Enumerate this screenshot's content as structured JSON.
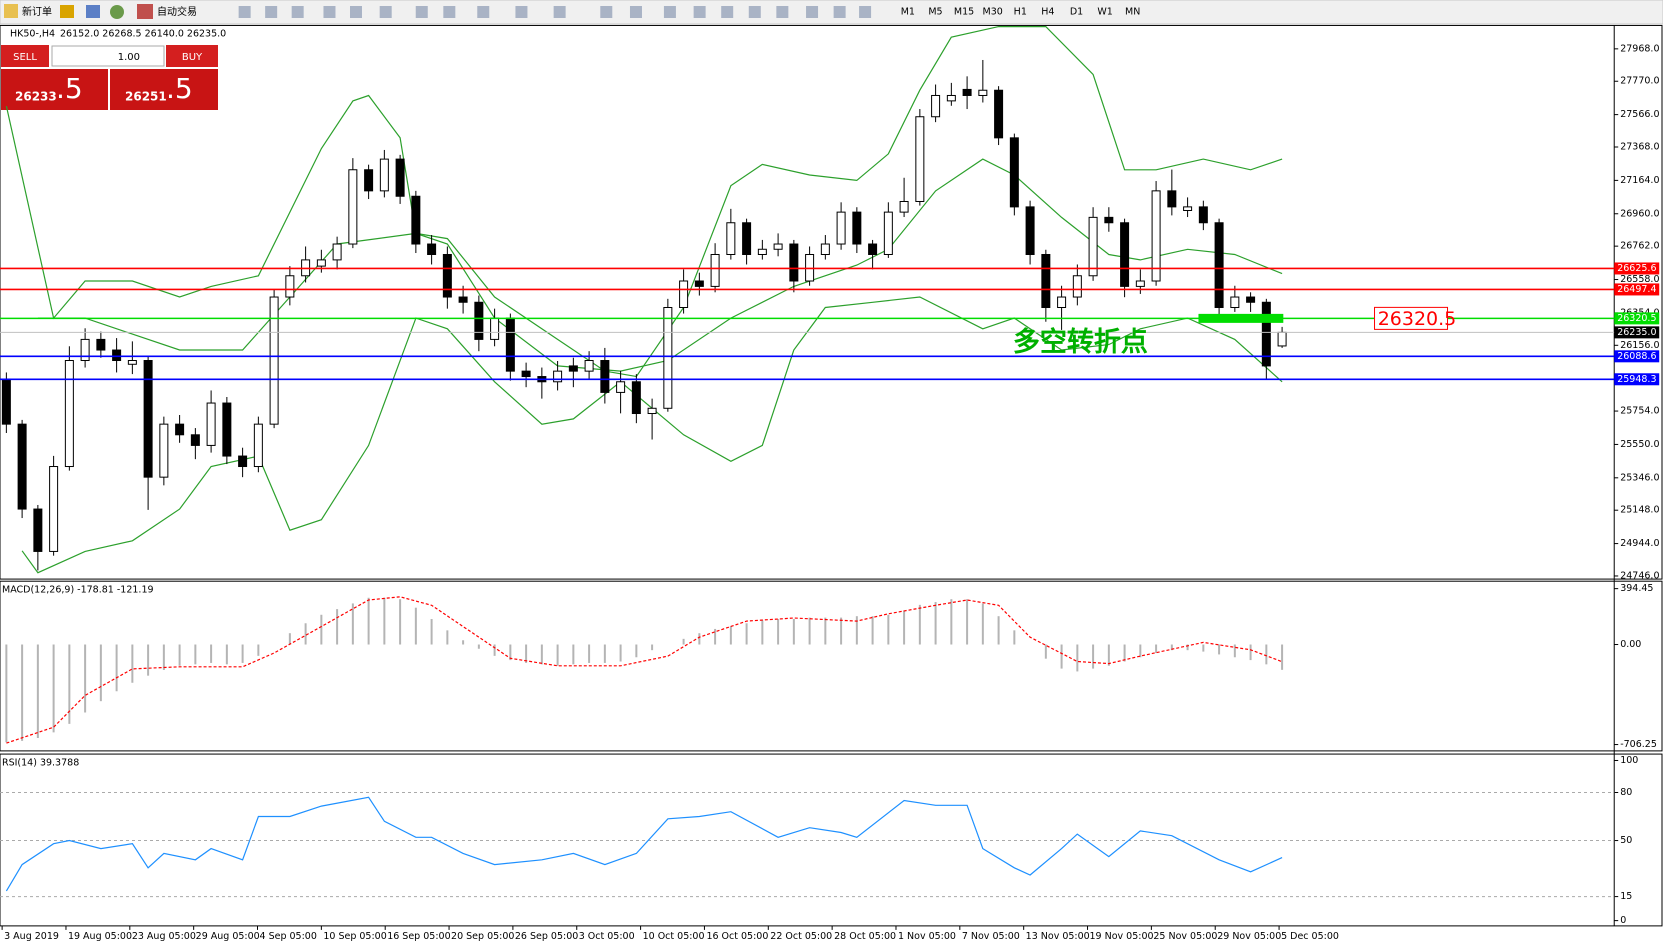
{
  "toolbar": {
    "new_order": "新订单",
    "auto_trading": "自动交易",
    "timeframes": [
      "M1",
      "M5",
      "M15",
      "M30",
      "H1",
      "H4",
      "D1",
      "W1",
      "MN"
    ]
  },
  "trade_panel": {
    "sell": "SELL",
    "lot": "1.00",
    "buy": "BUY",
    "sell_price": "26233",
    "sell_pips": ".5",
    "buy_price": "26251",
    "buy_pips": ".5"
  },
  "chart_data": [
    {
      "type": "candlestick",
      "info": "HK50-,H4",
      "ohlc_text": "26152.0 26268.5 26140.0 26235.0",
      "open": [
        25950,
        25674,
        25155,
        24896,
        25415,
        26063,
        26192,
        26127,
        26040,
        26063,
        25350,
        25674,
        25609,
        25544,
        25803,
        25479,
        25415,
        25674,
        26451,
        26581,
        26640,
        26678,
        26775,
        27229,
        27100,
        27294,
        27067,
        26775,
        26711,
        26451,
        26419,
        26192,
        26322,
        25998,
        25965,
        25933,
        26030,
        25998,
        26063,
        25868,
        25933,
        25739,
        25771,
        26387,
        26549,
        26516,
        26711,
        26905,
        26711,
        26743,
        26775,
        26549,
        26711,
        26775,
        26970,
        26775,
        26711,
        26970,
        27035,
        27553,
        27650,
        27720,
        27683,
        27715,
        27424,
        27002,
        26711,
        26387,
        26451,
        26581,
        26938,
        26905,
        26516,
        26549,
        27100,
        26980,
        27002,
        26905,
        26387,
        26451,
        26419,
        26152
      ],
      "high": [
        25990,
        25700,
        25180,
        25480,
        26150,
        26260,
        26240,
        26200,
        26180,
        26090,
        25720,
        25730,
        25650,
        25880,
        25840,
        25530,
        25720,
        26500,
        26640,
        26760,
        26740,
        26820,
        27300,
        27260,
        27350,
        27320,
        27100,
        26830,
        26760,
        26520,
        26460,
        26380,
        26350,
        26050,
        26020,
        26060,
        26080,
        26120,
        26140,
        26000,
        25980,
        25830,
        26440,
        26620,
        26600,
        26780,
        26990,
        26930,
        26800,
        26840,
        26800,
        26760,
        26830,
        27030,
        27000,
        26800,
        27030,
        27180,
        27600,
        27750,
        27760,
        27800,
        27900,
        27740,
        27450,
        27040,
        26740,
        26520,
        26650,
        27000,
        27000,
        26930,
        26620,
        27160,
        27230,
        27060,
        27040,
        26930,
        26520,
        26480,
        26440,
        26268.5
      ],
      "low": [
        25620,
        25100,
        24780,
        24870,
        25390,
        26020,
        26080,
        25990,
        25980,
        25150,
        25300,
        25560,
        25460,
        25500,
        25430,
        25350,
        25380,
        25650,
        26400,
        26540,
        26600,
        26620,
        26750,
        27050,
        27060,
        27020,
        26720,
        26650,
        26380,
        26350,
        26120,
        26150,
        25940,
        25900,
        25830,
        25880,
        25900,
        25950,
        25800,
        25740,
        25680,
        25580,
        25750,
        26350,
        26460,
        26480,
        26680,
        26650,
        26680,
        26700,
        26480,
        26520,
        26680,
        26740,
        26720,
        26620,
        26690,
        26940,
        27010,
        27520,
        27620,
        27600,
        27640,
        27380,
        26950,
        26650,
        26300,
        26250,
        26400,
        26550,
        26850,
        26450,
        26470,
        26520,
        26950,
        26940,
        26860,
        26330,
        26360,
        26360,
        25950,
        26140
      ],
      "close": [
        25674,
        25155,
        24896,
        25415,
        26063,
        26192,
        26127,
        26063,
        26063,
        25350,
        25674,
        25609,
        25544,
        25803,
        25479,
        25415,
        25674,
        26451,
        26581,
        26678,
        26678,
        26775,
        27229,
        27100,
        27294,
        27067,
        26775,
        26711,
        26451,
        26419,
        26192,
        26322,
        25998,
        25965,
        25933,
        25998,
        25998,
        26063,
        25868,
        25933,
        25739,
        25771,
        26387,
        26549,
        26516,
        26711,
        26905,
        26711,
        26743,
        26775,
        26549,
        26711,
        26775,
        26970,
        26775,
        26711,
        26970,
        27035,
        27553,
        27683,
        27683,
        27683,
        27715,
        27424,
        27002,
        26711,
        26387,
        26451,
        26581,
        26938,
        26905,
        26516,
        26549,
        27100,
        27002,
        27002,
        26905,
        26387,
        26451,
        26419,
        26030,
        26235
      ],
      "bands": {
        "color": "#2ca02c",
        "upper": {
          "x": [
            0,
            3,
            5,
            8,
            11,
            13,
            16,
            18,
            20,
            22,
            23,
            25,
            26,
            28,
            31,
            35,
            38,
            40,
            43,
            46,
            48,
            51,
            54,
            56,
            58,
            60,
            63,
            66,
            69,
            71,
            73,
            76,
            79,
            81
          ],
          "values": [
            27618,
            26322,
            26549,
            26549,
            26451,
            26516,
            26581,
            26970,
            27359,
            27650,
            27683,
            27424,
            26840,
            26808,
            26451,
            26192,
            25998,
            25965,
            26387,
            27132,
            27262,
            27197,
            27164,
            27326,
            27715,
            28039,
            28104,
            28104,
            27812,
            27229,
            27229,
            27294,
            27229,
            27294
          ]
        },
        "middle": {
          "x": [
            2,
            5,
            11,
            15,
            18,
            21,
            26,
            28,
            31,
            35,
            39,
            42,
            46,
            50,
            54,
            56,
            59,
            62,
            64,
            67,
            70,
            72,
            75,
            78,
            81
          ],
          "values": [
            26322,
            26322,
            26127,
            26127,
            26451,
            26775,
            26840,
            26775,
            26322,
            26030,
            25998,
            26063,
            26322,
            26516,
            26646,
            26743,
            27100,
            27294,
            27197,
            26938,
            26711,
            26678,
            26743,
            26711,
            26594
          ]
        },
        "lower": {
          "x": [
            1,
            2,
            5,
            8,
            11,
            13,
            16,
            18,
            20,
            23,
            26,
            28,
            31,
            34,
            36,
            39,
            43,
            46,
            48,
            50,
            52,
            55,
            58,
            62,
            64,
            67,
            70,
            72,
            75,
            78,
            81
          ],
          "values": [
            24900,
            24766,
            24896,
            24961,
            25155,
            25415,
            25479,
            25026,
            25090,
            25544,
            26322,
            26257,
            25933,
            25674,
            25706,
            25933,
            25609,
            25447,
            25544,
            26127,
            26387,
            26419,
            26451,
            26257,
            26322,
            26127,
            26160,
            26257,
            26322,
            26192,
            25933
          ]
        }
      },
      "hlines": [
        {
          "value": 26625.6,
          "color": "#ff0000"
        },
        {
          "value": 26497.4,
          "color": "#ff0000"
        },
        {
          "value": 26320.5,
          "color": "#00dd00"
        },
        {
          "value": 26088.6,
          "color": "#0000ff"
        },
        {
          "value": 25948.3,
          "color": "#0000ff"
        }
      ],
      "bid": {
        "value": 26235,
        "label": "26235.0"
      },
      "annotation": {
        "text": "多空转折点",
        "color": "#00b000"
      },
      "ylim": [
        24727,
        28111
      ],
      "yticks": [
        {
          "value": 27968,
          "label": "27968.0"
        },
        {
          "value": 27770,
          "label": "27770.0"
        },
        {
          "value": 27566,
          "label": "27566.0"
        },
        {
          "value": 27368,
          "label": "27368.0"
        },
        {
          "value": 27164,
          "label": "27164.0"
        },
        {
          "value": 26960,
          "label": "26960.0"
        },
        {
          "value": 26762,
          "label": "26762.0"
        },
        {
          "value": 26558,
          "label": "26558.0"
        },
        {
          "value": 26354,
          "label": "26354.0"
        },
        {
          "value": 26156,
          "label": "26156.0"
        },
        {
          "value": 25754,
          "label": "25754.0"
        },
        {
          "value": 25550,
          "label": "25550.0"
        },
        {
          "value": 25346,
          "label": "25346.0"
        },
        {
          "value": 25148,
          "label": "25148.0"
        },
        {
          "value": 24944,
          "label": "24944.0"
        },
        {
          "value": 24746,
          "label": "24746.0"
        }
      ],
      "x_labels": [
        "3 Aug 2019",
        "19 Aug 05:00",
        "23 Aug 05:00",
        "29 Aug 05:00",
        "4 Sep 05:00",
        "10 Sep 05:00",
        "16 Sep 05:00",
        "20 Sep 05:00",
        "26 Sep 05:00",
        "3 Oct 05:00",
        "10 Oct 05:00",
        "16 Oct 05:00",
        "22 Oct 05:00",
        "28 Oct 05:00",
        "1 Nov 05:00",
        "7 Nov 05:00",
        "13 Nov 05:00",
        "19 Nov 05:00",
        "25 Nov 05:00",
        "29 Nov 05:00",
        "5 Dec 05:00"
      ]
    },
    {
      "type": "macd",
      "title": "MACD(12,26,9) -178.81 -121.19",
      "histogram": [
        -690,
        -680,
        -660,
        -620,
        -560,
        -480,
        -400,
        -330,
        -270,
        -220,
        -180,
        -150,
        -140,
        -130,
        -140,
        -130,
        -80,
        0,
        80,
        150,
        210,
        250,
        290,
        330,
        330,
        320,
        260,
        180,
        100,
        30,
        -30,
        -80,
        -110,
        -130,
        -140,
        -150,
        -140,
        -130,
        -130,
        -120,
        -90,
        -40,
        0,
        40,
        80,
        110,
        130,
        150,
        170,
        180,
        180,
        190,
        190,
        190,
        200,
        200,
        210,
        240,
        280,
        300,
        320,
        320,
        290,
        200,
        100,
        0,
        -100,
        -170,
        -190,
        -170,
        -150,
        -120,
        -90,
        -60,
        -40,
        -40,
        -50,
        -70,
        -90,
        -110,
        -140,
        -178.81
      ],
      "histogram_color": "#b4b4b4",
      "signal": {
        "color": "#ff0000",
        "x": [
          0,
          3,
          5,
          8,
          11,
          15,
          17,
          20,
          23,
          25,
          27,
          30,
          32,
          35,
          39,
          42,
          44,
          47,
          50,
          54,
          56,
          59,
          61,
          63,
          65,
          68,
          70,
          72,
          76,
          79,
          81
        ],
        "values": [
          -696,
          -584,
          -359,
          -172,
          -157,
          -157,
          -60,
          127,
          314,
          337,
          277,
          52,
          -97,
          -150,
          -150,
          -82,
          52,
          165,
          187,
          165,
          217,
          277,
          314,
          277,
          52,
          -120,
          -135,
          -82,
          15,
          -37,
          -121.19
        ]
      },
      "ylim": [
        -751,
        447
      ],
      "yticks": [
        394.45,
        {
          "value": 0,
          "label": "0.00"
        },
        -706.25
      ]
    },
    {
      "type": "line",
      "title": "RSI(14) 39.3788",
      "color": "#1e90ff",
      "x": [
        0,
        1,
        3,
        4,
        6,
        8,
        9,
        10,
        12,
        13,
        15,
        16,
        18,
        20,
        23,
        24,
        26,
        27,
        29,
        31,
        34,
        36,
        38,
        40,
        42,
        44,
        46,
        49,
        51,
        53,
        54,
        57,
        59,
        61,
        62,
        64,
        65,
        67,
        68,
        70,
        72,
        74,
        77,
        79,
        81
      ],
      "values": [
        18.5,
        35,
        48,
        50,
        45,
        48,
        33,
        42,
        38,
        45,
        38,
        65,
        65,
        71.5,
        77,
        62,
        52,
        52,
        42,
        35,
        38,
        42,
        35,
        42,
        63.6,
        65,
        68,
        52,
        58,
        55,
        52,
        75,
        72,
        72,
        45,
        33,
        28.5,
        45,
        54,
        40,
        56,
        53,
        38,
        30.5,
        39.3788
      ],
      "ylim": [
        -3.3,
        104
      ],
      "yticks": [
        100,
        80,
        50,
        15,
        0
      ],
      "grid": true
    }
  ]
}
